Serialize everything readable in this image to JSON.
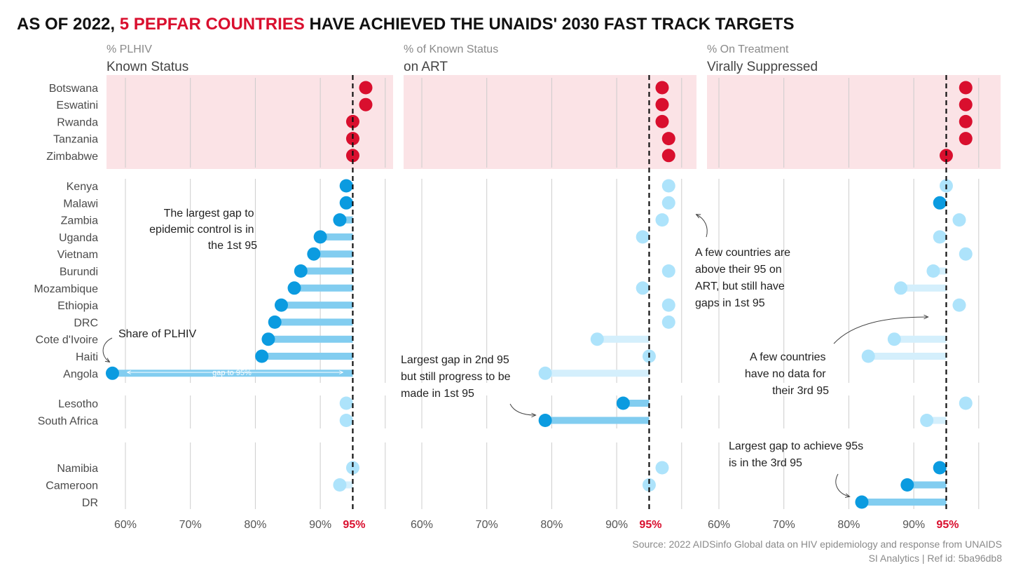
{
  "title": {
    "prefix": "AS OF 2022, ",
    "highlight": "5 PEPFAR COUNTRIES",
    "suffix": " HAVE ACHIEVED THE UNAIDS' 2030 FAST TRACK TARGETS"
  },
  "colors": {
    "achieved": "#d90f2e",
    "achieved_band": "#fbe3e6",
    "gap_dot": "#0b9be0",
    "gap_bar": "#82cdf0",
    "above_dot": "#ade3fb",
    "above_bar": "#d4effc",
    "target_line": "#111111",
    "grid": "#cccccc"
  },
  "chart_data": {
    "type": "dot",
    "x_ticks": [
      "60%",
      "70%",
      "80%",
      "90%"
    ],
    "target_label": "95%",
    "target": 95,
    "xlim": [
      57,
      100
    ],
    "groups": [
      [
        "Botswana",
        "Eswatini",
        "Rwanda",
        "Tanzania",
        "Zimbabwe"
      ],
      [
        "Kenya",
        "Malawi",
        "Zambia",
        "Uganda",
        "Vietnam",
        "Burundi",
        "Mozambique",
        "Ethiopia",
        "DRC",
        "Cote d'Ivoire",
        "Haiti",
        "Angola"
      ],
      [
        "Lesotho",
        "South Africa"
      ],
      [
        "Namibia",
        "Cameroon",
        "DR"
      ]
    ],
    "panels": [
      {
        "subtitle": "% PLHIV",
        "heading": "Known Status",
        "values": {
          "Botswana": 97,
          "Eswatini": 97,
          "Rwanda": 95,
          "Tanzania": 95,
          "Zimbabwe": 95,
          "Kenya": 94,
          "Malawi": 94,
          "Zambia": 93,
          "Uganda": 90,
          "Vietnam": 89,
          "Burundi": 87,
          "Mozambique": 86,
          "Ethiopia": 84,
          "DRC": 83,
          "Cote d'Ivoire": 82,
          "Haiti": 81,
          "Angola": 58,
          "Lesotho": 94,
          "South Africa": 94,
          "Namibia": 95,
          "Cameroon": 93
        }
      },
      {
        "subtitle": "% of Known Status",
        "heading": "on ART",
        "values": {
          "Botswana": 97,
          "Eswatini": 97,
          "Rwanda": 97,
          "Tanzania": 98,
          "Zimbabwe": 98,
          "Kenya": 98,
          "Malawi": 98,
          "Zambia": 97,
          "Uganda": 94,
          "Vietnam": null,
          "Burundi": 98,
          "Mozambique": 94,
          "Ethiopia": 98,
          "DRC": 98,
          "Cote d'Ivoire": 87,
          "Haiti": 95,
          "Angola": 79,
          "Lesotho": 91,
          "South Africa": 79,
          "Namibia": 97,
          "Cameroon": 95
        }
      },
      {
        "subtitle": "% On Treatment",
        "heading": "Virally Suppressed",
        "values": {
          "Botswana": 98,
          "Eswatini": 98,
          "Rwanda": 98,
          "Tanzania": 98,
          "Zimbabwe": 95,
          "Kenya": 95,
          "Malawi": 94,
          "Zambia": 97,
          "Uganda": 94,
          "Vietnam": 98,
          "Burundi": 93,
          "Mozambique": 88,
          "Ethiopia": 97,
          "DRC": null,
          "Cote d'Ivoire": 87,
          "Haiti": 83,
          "Angola": null,
          "Lesotho": 98,
          "South Africa": 92,
          "Namibia": 94,
          "Cameroon": 89,
          "DR": 82
        }
      }
    ]
  },
  "annotations": {
    "largest_gap_1st": [
      "The largest gap to",
      "epidemic control is in",
      "the 1st 95"
    ],
    "share_plhiv": "Share of PLHIV",
    "gap_to_95": "gap to 95%",
    "largest_gap_2nd": [
      "Largest gap in 2nd 95",
      "but still progress to be",
      "made in 1st 95"
    ],
    "above_on_art": [
      "A few countries are",
      "above their 95 on",
      "ART, but still have",
      "gaps in 1st 95"
    ],
    "no_data_3rd": [
      "A few countries",
      "have no data for",
      "their 3rd 95"
    ],
    "largest_gap_3rd": [
      "Largest gap to achieve 95s",
      "is in the 3rd 95"
    ]
  },
  "source": {
    "line1": "Source: 2022 AIDSinfo Global data on HIV epidemiology and response from UNAIDS",
    "line2": "SI Analytics | Ref id: 5ba96db8"
  }
}
